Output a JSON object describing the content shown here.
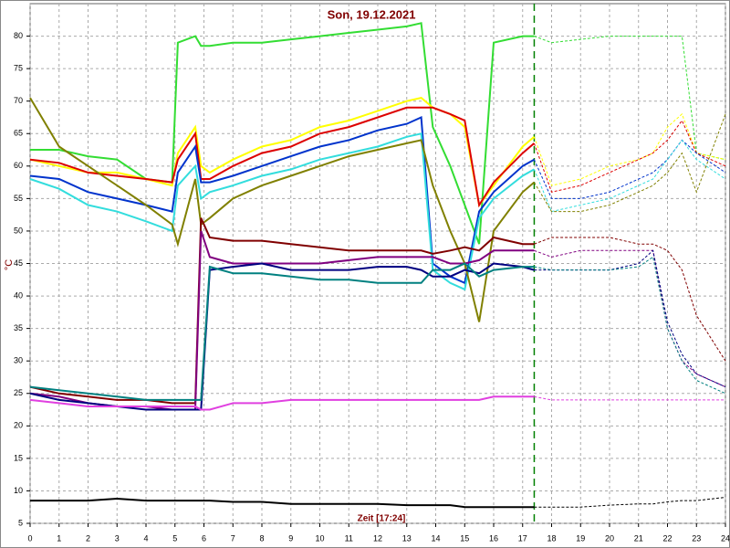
{
  "chart_data": {
    "type": "line",
    "title": "Son, 19.12.2021",
    "y_label": "°C",
    "x_label": "Zeit [17:24]",
    "current_time": 17.4,
    "grid": true,
    "xlim": [
      0,
      24
    ],
    "xticks": [
      0,
      1,
      2,
      3,
      4,
      5,
      6,
      7,
      8,
      9,
      10,
      11,
      12,
      13,
      14,
      15,
      16,
      17,
      18,
      19,
      20,
      21,
      22,
      23,
      24
    ],
    "ylim": [
      5,
      85
    ],
    "yticks": [
      5,
      10,
      15,
      20,
      25,
      30,
      35,
      40,
      45,
      50,
      55,
      60,
      65,
      70,
      75,
      80
    ],
    "x": [
      0,
      1,
      2,
      3,
      4,
      4.9,
      5.1,
      5.7,
      5.9,
      6.2,
      7,
      8,
      9,
      10,
      11,
      12,
      13,
      13.5,
      13.9,
      14.5,
      15,
      15.5,
      16,
      17,
      17.4,
      18,
      19,
      20,
      21,
      21.5,
      22,
      22.5,
      23,
      24
    ],
    "series": [
      {
        "color": "#33dd33",
        "values": [
          62.5,
          62.5,
          61.5,
          61,
          58,
          57.5,
          79,
          80,
          78.5,
          78.5,
          79,
          79,
          79.5,
          80,
          80.5,
          81,
          81.5,
          82,
          66,
          60,
          54,
          48,
          79,
          80,
          80,
          79,
          79.5,
          80,
          80,
          80,
          80,
          80,
          62,
          61
        ]
      },
      {
        "color": "#ffff00",
        "values": [
          61,
          60,
          59,
          59,
          58,
          57,
          62,
          66,
          60,
          59,
          61,
          63,
          64,
          66,
          67,
          68.5,
          70,
          70.5,
          69,
          68,
          66,
          54,
          57,
          63,
          64.5,
          57,
          58,
          60,
          61,
          62,
          66,
          68,
          62,
          61
        ]
      },
      {
        "color": "#dd0000",
        "values": [
          61,
          60.5,
          59,
          58.5,
          58,
          57.5,
          61,
          65,
          58,
          58,
          60,
          62,
          63,
          65,
          66,
          67.5,
          69,
          69,
          69,
          68,
          67,
          54,
          57.5,
          62,
          63.5,
          56,
          57,
          59,
          61,
          62,
          64,
          67,
          62,
          60
        ]
      },
      {
        "color": "#0033cc",
        "values": [
          58.5,
          58,
          56,
          55,
          54,
          53,
          59,
          63,
          57.5,
          57.5,
          58.5,
          60,
          61.5,
          63,
          64,
          65.5,
          66.5,
          67.5,
          45,
          43,
          42,
          53,
          56,
          60,
          61,
          55,
          55,
          56,
          58,
          59,
          61,
          64,
          62,
          59
        ]
      },
      {
        "color": "#33dddd",
        "values": [
          58,
          56.5,
          54,
          53,
          51.5,
          50,
          57,
          60,
          55,
          56,
          57,
          58.5,
          59.5,
          61,
          62,
          63,
          64.5,
          65,
          44,
          42,
          41,
          52,
          55,
          58.5,
          59.5,
          53,
          54,
          55,
          57,
          58,
          61,
          64,
          61,
          58
        ]
      },
      {
        "color": "#808000",
        "values": [
          70.5,
          63,
          60,
          57,
          54,
          51,
          48,
          58,
          51,
          52,
          55,
          57,
          58.5,
          60,
          61.5,
          62.5,
          63.5,
          64,
          57,
          50,
          45,
          36,
          50,
          56,
          57.5,
          53,
          53,
          54,
          56,
          57,
          59,
          62,
          56,
          68
        ]
      },
      {
        "color": "#800000",
        "values": [
          26,
          25,
          24.5,
          24,
          24,
          23.5,
          23.5,
          23.5,
          52,
          49,
          48.5,
          48.5,
          48,
          47.5,
          47,
          47,
          47,
          47,
          46.5,
          47,
          47.5,
          47,
          49,
          48,
          48,
          49,
          49,
          49,
          48,
          48,
          47,
          44,
          37,
          30
        ]
      },
      {
        "color": "#800080",
        "values": [
          25,
          24.5,
          23.5,
          23,
          23,
          22.5,
          22.5,
          22.5,
          50,
          46,
          45,
          45,
          45,
          45,
          45.5,
          46,
          46,
          46,
          46,
          45,
          45,
          45.5,
          47,
          47,
          47,
          46,
          47,
          47,
          47,
          47,
          35,
          30,
          28,
          26
        ]
      },
      {
        "color": "#000080",
        "values": [
          25,
          24,
          23.5,
          23,
          22.5,
          22.5,
          22.5,
          22.5,
          22.5,
          44,
          44.5,
          45,
          44,
          44,
          44,
          44.5,
          44.5,
          44,
          43,
          43,
          44,
          43.5,
          45,
          44.5,
          44,
          44,
          44,
          44,
          45,
          47,
          36,
          31,
          28,
          26
        ]
      },
      {
        "color": "#008080",
        "values": [
          26,
          25.5,
          25,
          24.5,
          24,
          24,
          24,
          24,
          24,
          44.5,
          43.5,
          43.5,
          43,
          42.5,
          42.5,
          42,
          42,
          42,
          44,
          44,
          45,
          43,
          44,
          44.5,
          44.5,
          44,
          44,
          44,
          44.5,
          46,
          35,
          30,
          27,
          25
        ]
      },
      {
        "color": "#e040e0",
        "values": [
          24,
          23.5,
          23,
          23,
          23,
          23,
          23,
          23,
          22.5,
          22.5,
          23.5,
          23.5,
          24,
          24,
          24,
          24,
          24,
          24,
          24,
          24,
          24,
          24,
          24.5,
          24.5,
          24.5,
          24,
          24,
          24,
          24,
          24,
          24,
          24,
          24,
          24
        ]
      },
      {
        "color": "#000000",
        "values": [
          8.5,
          8.5,
          8.5,
          8.8,
          8.5,
          8.5,
          8.5,
          8.5,
          8.5,
          8.5,
          8.3,
          8.3,
          8,
          8,
          8,
          8,
          7.8,
          7.8,
          7.8,
          7.8,
          7.5,
          7.5,
          7.5,
          7.5,
          7.5,
          7.5,
          7.5,
          7.8,
          8,
          8,
          8.3,
          8.5,
          8.5,
          9
        ]
      }
    ]
  }
}
